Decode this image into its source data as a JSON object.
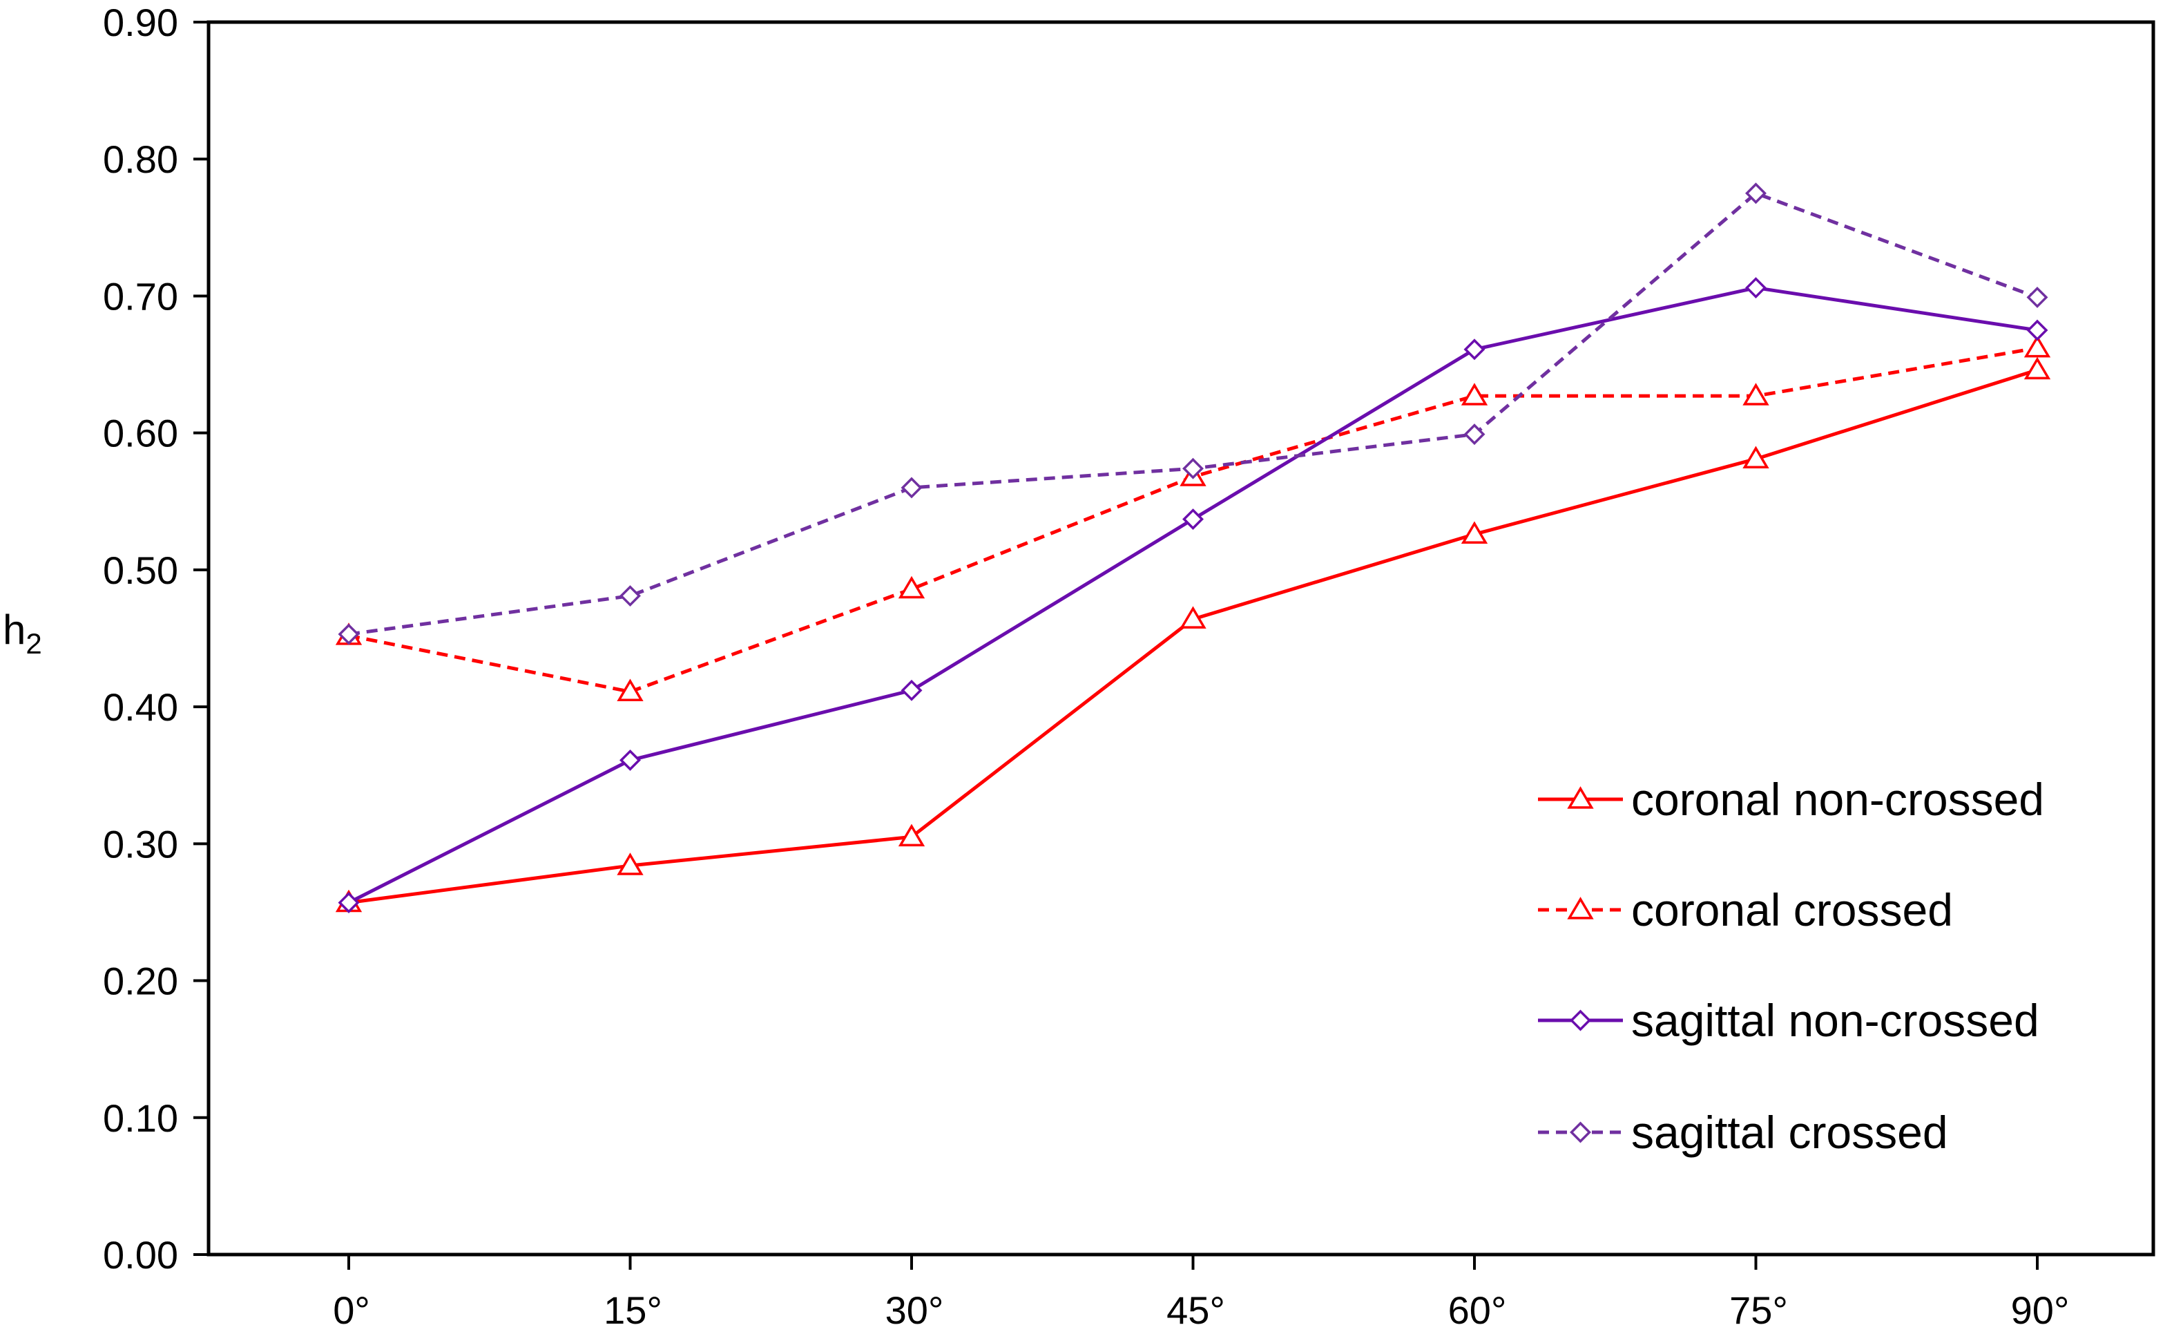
{
  "chart_data": {
    "type": "line",
    "title": "",
    "xlabel": "",
    "ylabel": "h",
    "ylabel_subscript": "2",
    "categories": [
      "0°",
      "15°",
      "30°",
      "45°",
      "60°",
      "75°",
      "90°"
    ],
    "ylim": [
      0,
      0.9
    ],
    "yticks": [
      "0.00",
      "0.10",
      "0.20",
      "0.30",
      "0.40",
      "0.50",
      "0.60",
      "0.70",
      "0.80",
      "0.90"
    ],
    "grid": false,
    "legend_position": "bottom-right",
    "series": [
      {
        "name": "coronal non-crossed",
        "values": [
          0.257,
          0.284,
          0.305,
          0.464,
          0.526,
          0.581,
          0.646
        ],
        "color": "#ff0000",
        "dash": "solid",
        "marker": "triangle"
      },
      {
        "name": "coronal crossed",
        "values": [
          0.452,
          0.411,
          0.486,
          0.568,
          0.627,
          0.627,
          0.662
        ],
        "color": "#ff0000",
        "dash": "dashed",
        "marker": "triangle"
      },
      {
        "name": "sagittal non-crossed",
        "values": [
          0.257,
          0.361,
          0.412,
          0.537,
          0.661,
          0.706,
          0.675
        ],
        "color": "#6a0dad",
        "dash": "solid",
        "marker": "diamond"
      },
      {
        "name": "sagittal crossed",
        "values": [
          0.453,
          0.481,
          0.56,
          0.574,
          0.599,
          0.775,
          0.699
        ],
        "color": "#7030a0",
        "dash": "dashed",
        "marker": "diamond"
      }
    ]
  }
}
